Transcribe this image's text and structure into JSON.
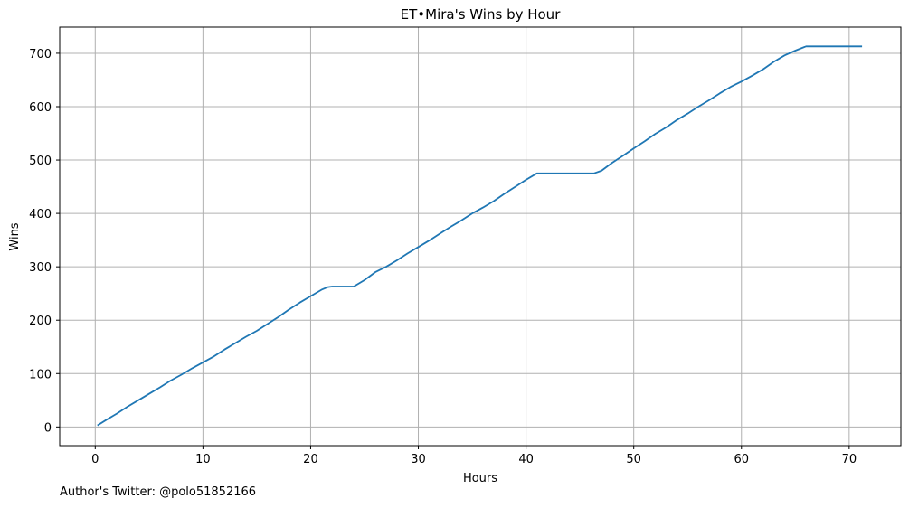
{
  "caption": "Author's Twitter: @polo51852166",
  "chart_data": {
    "type": "line",
    "title": "ET•Mira's Wins by Hour",
    "xlabel": "Hours",
    "ylabel": "Wins",
    "xlim": [
      -3.3,
      74.8
    ],
    "ylim": [
      -35,
      749
    ],
    "xticks": [
      0,
      10,
      20,
      30,
      40,
      50,
      60,
      70
    ],
    "yticks": [
      0,
      100,
      200,
      300,
      400,
      500,
      600,
      700
    ],
    "grid": true,
    "line_color": "#1f77b4",
    "series": [
      {
        "x": [
          0.2,
          1.0,
          2.0,
          3.0,
          4.0,
          5.0,
          6.0,
          7.0,
          8.0,
          9.0,
          10.0,
          11.0,
          12.0,
          13.0,
          14.0,
          15.0,
          16.0,
          17.0,
          18.0,
          19.0,
          20.0,
          21.0,
          21.6,
          22.0,
          23.0,
          24.0,
          25.0,
          26.0,
          27.0,
          28.0,
          29.0,
          30.0,
          31.0,
          32.0,
          33.0,
          34.0,
          35.0,
          36.0,
          37.0,
          38.0,
          39.0,
          40.0,
          41.0,
          41.3,
          42.0,
          44.0,
          46.3,
          47.0,
          48.0,
          49.0,
          50.0,
          51.0,
          52.0,
          53.0,
          54.0,
          55.0,
          56.0,
          57.0,
          58.0,
          59.0,
          60.0,
          61.0,
          62.0,
          63.0,
          64.0,
          65.0,
          66.0,
          67.0,
          68.0,
          69.0,
          70.0,
          71.2
        ],
        "values": [
          3,
          13,
          25,
          38,
          50,
          62,
          74,
          87,
          98,
          110,
          121,
          132,
          145,
          157,
          169,
          180,
          193,
          206,
          220,
          233,
          245,
          257,
          262,
          263,
          263,
          263,
          275,
          290,
          300,
          312,
          325,
          337,
          349,
          362,
          375,
          387,
          400,
          411,
          423,
          437,
          450,
          463,
          475,
          475,
          475,
          475,
          475,
          480,
          495,
          508,
          522,
          535,
          549,
          561,
          575,
          587,
          600,
          612,
          625,
          637,
          647,
          658,
          670,
          684,
          696,
          705,
          713,
          713,
          713,
          713,
          713,
          713
        ]
      }
    ]
  }
}
